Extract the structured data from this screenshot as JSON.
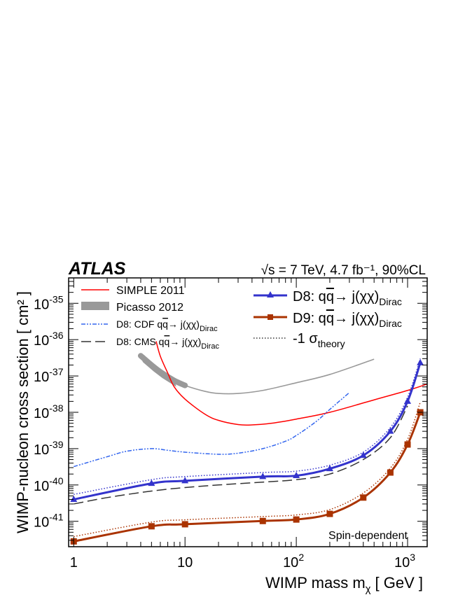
{
  "chart_data": {
    "type": "line",
    "experiment_label": "ATLAS",
    "energy_label": "√s = 7 TeV, 4.7 fb⁻¹, 90%CL",
    "region_label": "Spin-dependent",
    "xlabel": "WIMP mass m",
    "xlabel_sub": "χ",
    "xlabel_unit": "[ GeV ]",
    "ylabel": "WIMP-nucleon cross section [ cm² ]",
    "x_scale": "log",
    "y_scale": "log",
    "xlim": [
      0.9,
      1500
    ],
    "ylim": [
      2e-42,
      5e-35
    ],
    "x_ticks": [
      {
        "v": 1,
        "label": "1"
      },
      {
        "v": 10,
        "label": "10"
      },
      {
        "v": 100,
        "label": "10",
        "sup": "2"
      },
      {
        "v": 1000,
        "label": "10",
        "sup": "3"
      }
    ],
    "y_ticks": [
      {
        "v": 1e-41,
        "label": "10",
        "sup": "-41"
      },
      {
        "v": 1e-40,
        "label": "10",
        "sup": "-40"
      },
      {
        "v": 1e-39,
        "label": "10",
        "sup": "-39"
      },
      {
        "v": 1e-38,
        "label": "10",
        "sup": "-38"
      },
      {
        "v": 1e-37,
        "label": "10",
        "sup": "-37"
      },
      {
        "v": 1e-36,
        "label": "10",
        "sup": "-36"
      },
      {
        "v": 1e-35,
        "label": "10",
        "sup": "-35"
      }
    ],
    "legend_left_placement": "top-left",
    "legend_right_placement": "top-right",
    "series": [
      {
        "name": "SIMPLE 2011",
        "color": "#ff0000",
        "style": "solid",
        "marker": "none",
        "x": [
          5.5,
          6,
          7,
          8,
          10,
          15,
          20,
          30,
          40,
          60,
          100,
          200,
          500,
          1000,
          1500
        ],
        "y": [
          9e-37,
          3.5e-37,
          1.2e-37,
          5e-38,
          2.3e-38,
          9e-39,
          6e-39,
          4.6e-39,
          4.5e-39,
          5e-39,
          6.5e-39,
          1e-38,
          2.2e-38,
          4e-38,
          6e-38
        ]
      },
      {
        "name": "Picasso 2012",
        "color": "#999999",
        "style": "band",
        "marker": "none",
        "x": [
          4,
          5,
          6,
          8,
          10,
          15,
          20,
          30,
          50,
          100,
          200,
          500
        ],
        "y": [
          3.6e-37,
          2e-37,
          1.3e-37,
          7.5e-38,
          5.5e-38,
          3.8e-38,
          3.3e-38,
          3.3e-38,
          4e-38,
          6.5e-38,
          1.1e-37,
          2.9e-37
        ]
      },
      {
        "name": "D8: CDF q",
        "name_rest": "→ j(χχ)",
        "name_sub": "Dirac",
        "color": "#3366ee",
        "style": "dashdot",
        "marker": "none",
        "x": [
          1,
          2,
          3,
          5,
          7,
          10,
          20,
          30,
          50,
          80,
          100,
          150,
          200,
          300
        ],
        "y": [
          3.2e-40,
          6e-40,
          8.5e-40,
          1e-39,
          9e-40,
          8e-40,
          7e-40,
          7.5e-40,
          1e-39,
          1.6e-39,
          2.3e-39,
          5.5e-39,
          1.2e-38,
          3.5e-38
        ]
      },
      {
        "name": "D8: CMS q",
        "name_rest": "→ j(χχ)",
        "name_sub": "Dirac",
        "color": "#333333",
        "style": "dash",
        "marker": "none",
        "x": [
          1,
          2,
          5,
          10,
          20,
          50,
          100,
          200,
          400,
          700,
          1000
        ],
        "y": [
          3e-41,
          4.5e-41,
          6.8e-41,
          8.5e-41,
          1e-40,
          1.2e-40,
          1.4e-40,
          2e-40,
          5e-40,
          2e-39,
          1.5e-38
        ]
      },
      {
        "name": "D8: q",
        "name_rest": "→ j(χχ)",
        "name_sub": "Dirac",
        "color": "#3333cc",
        "style": "solid",
        "marker": "triangle",
        "x": [
          1,
          5,
          10,
          50,
          100,
          200,
          400,
          700,
          1000,
          1300
        ],
        "y": [
          4e-41,
          1.1e-40,
          1.3e-40,
          1.7e-40,
          1.8e-40,
          2.8e-40,
          6.5e-40,
          3e-39,
          2e-38,
          2.3e-37
        ]
      },
      {
        "name": "D8 -1σ theory",
        "color": "#3333cc",
        "style": "dotted",
        "marker": "none",
        "x": [
          1,
          5,
          10,
          50,
          100,
          200,
          400,
          700,
          1000,
          1300
        ],
        "y": [
          5.5e-41,
          1.4e-40,
          1.7e-40,
          2.2e-40,
          2.4e-40,
          3.5e-40,
          8e-40,
          3.8e-39,
          2.6e-38,
          3e-37
        ]
      },
      {
        "name": "D9: q",
        "name_rest": "→ j(χχ)",
        "name_sub": "Dirac",
        "color": "#aa3300",
        "style": "solid",
        "marker": "square",
        "x": [
          1,
          5,
          10,
          50,
          100,
          200,
          400,
          700,
          1000,
          1300
        ],
        "y": [
          2.8e-42,
          7.3e-42,
          8.3e-42,
          1.02e-41,
          1.12e-41,
          1.6e-41,
          4.5e-41,
          2.2e-40,
          1.3e-39,
          1e-38
        ]
      },
      {
        "name": "D9 -1σ theory",
        "color": "#aa3300",
        "style": "dotted",
        "marker": "none",
        "x": [
          1,
          5,
          10,
          50,
          100,
          200,
          400,
          700,
          1000,
          1300
        ],
        "y": [
          3.8e-42,
          9.5e-42,
          1.1e-41,
          1.35e-41,
          1.5e-41,
          2.1e-41,
          6e-41,
          2.9e-40,
          1.8e-39,
          1.9e-38
        ]
      }
    ],
    "legend_theory_label": "-1 σ",
    "legend_theory_sub": "theory"
  }
}
